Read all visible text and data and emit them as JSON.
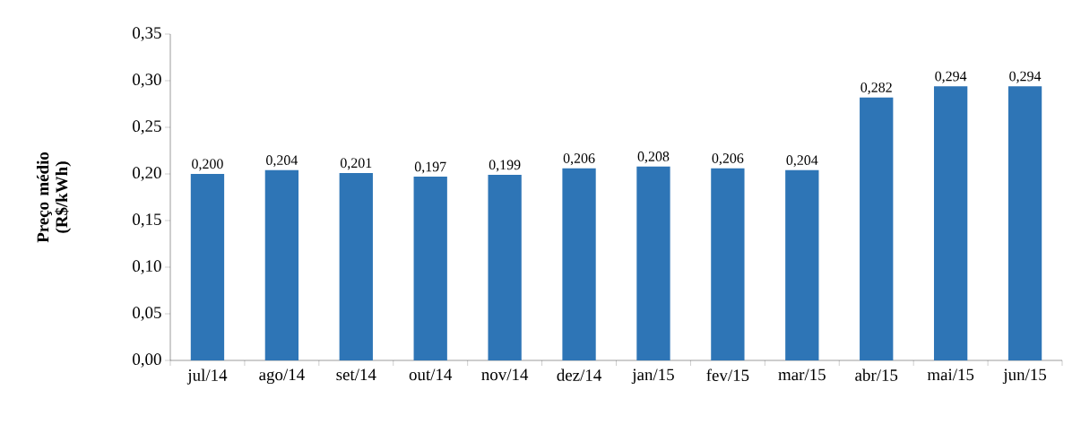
{
  "chart_data": {
    "type": "bar",
    "ylabel": "Preço médio (R$/kWh)",
    "categories": [
      "jul/14",
      "ago/14",
      "set/14",
      "out/14",
      "nov/14",
      "dez/14",
      "jan/15",
      "fev/15",
      "mar/15",
      "abr/15",
      "mai/15",
      "jun/15"
    ],
    "values": [
      0.2,
      0.204,
      0.201,
      0.197,
      0.199,
      0.206,
      0.208,
      0.206,
      0.204,
      0.282,
      0.294,
      0.294
    ],
    "value_labels": [
      "0,200",
      "0,204",
      "0,201",
      "0,197",
      "0,199",
      "0,206",
      "0,208",
      "0,206",
      "0,204",
      "0,282",
      "0,294",
      "0,294"
    ],
    "color": "#2e75b6",
    "ylim": [
      0,
      0.35
    ],
    "yticks": [
      {
        "value": 0,
        "label": "0,00"
      },
      {
        "value": 0.05,
        "label": "0,05"
      },
      {
        "value": 0.1,
        "label": "0,10"
      },
      {
        "value": 0.15,
        "label": "0,15"
      },
      {
        "value": 0.2,
        "label": "0,20"
      },
      {
        "value": 0.25,
        "label": "0,25"
      },
      {
        "value": 0.3,
        "label": "0,30"
      },
      {
        "value": 0.35,
        "label": "0,35"
      }
    ],
    "grid": false
  }
}
